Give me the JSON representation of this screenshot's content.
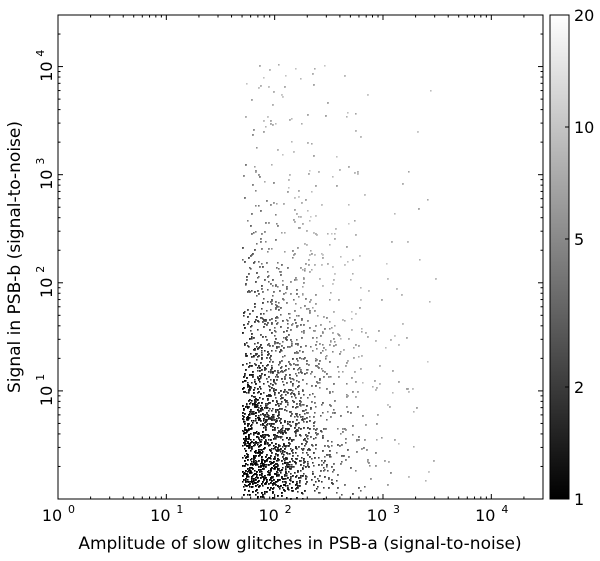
{
  "chart_data": {
    "type": "heatmap",
    "subtype": "2d-histogram",
    "title": "",
    "xlabel": "Amplitude of slow glitches in PSB-a (signal-to-noise)",
    "ylabel": "Signal in PSB-b (signal-to-noise)",
    "x_scale": "log",
    "y_scale": "log",
    "xlim": [
      1,
      30000
    ],
    "ylim": [
      1,
      30000
    ],
    "x_ticks": [
      {
        "value": 1,
        "label": "10",
        "exp": "0"
      },
      {
        "value": 10,
        "label": "10",
        "exp": "1"
      },
      {
        "value": 100,
        "label": "10",
        "exp": "2"
      },
      {
        "value": 1000,
        "label": "10",
        "exp": "3"
      },
      {
        "value": 10000,
        "label": "10",
        "exp": "4"
      }
    ],
    "y_ticks": [
      {
        "value": 10,
        "label": "10",
        "exp": "1"
      },
      {
        "value": 100,
        "label": "10",
        "exp": "2"
      },
      {
        "value": 1000,
        "label": "10",
        "exp": "3"
      },
      {
        "value": 10000,
        "label": "10",
        "exp": "4"
      }
    ],
    "grid": false,
    "colormap": "gray_r",
    "colorbar": {
      "scale": "log",
      "range": [
        1,
        20
      ],
      "ticks": [
        {
          "value": 1,
          "label": "1"
        },
        {
          "value": 2,
          "label": "2"
        },
        {
          "value": 5,
          "label": "5"
        },
        {
          "value": 10,
          "label": "10"
        },
        {
          "value": 20,
          "label": "20"
        }
      ]
    },
    "distribution": {
      "x_min_cutoff": 50,
      "x_max": 5000,
      "y_max": 20000,
      "density_peak_x": 60,
      "density_peak_y": 1.5
    }
  }
}
